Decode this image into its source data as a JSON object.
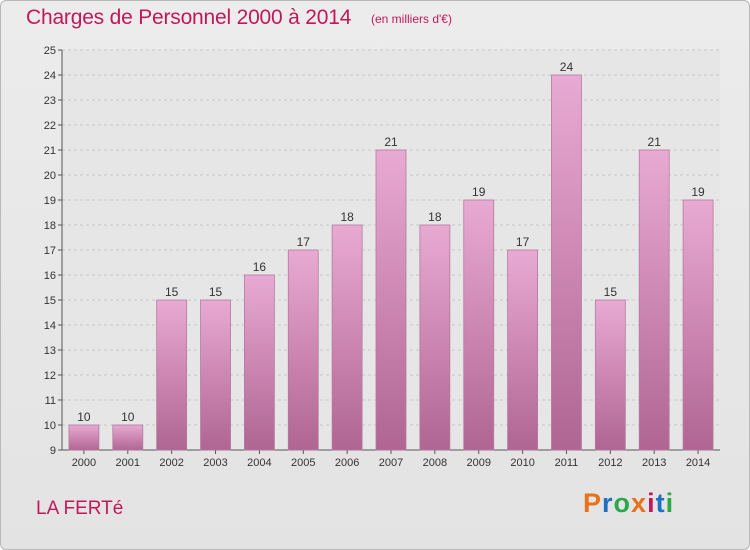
{
  "header": {
    "title": "Charges de Personnel 2000 à 2014",
    "subtitle": "(en milliers d'€)"
  },
  "footer": {
    "place": "LA FERTé",
    "logo_text": "Proxiti",
    "logo_colors": [
      "#e8721c",
      "#1f6fc2",
      "#2ba84a",
      "#e8721c",
      "#c2185b",
      "#1f6fc2",
      "#2ba84a"
    ]
  },
  "colors": {
    "title": "#c2185b",
    "bar_top": "#e8aad2",
    "bar_bottom": "#b06592"
  },
  "chart_data": {
    "type": "bar",
    "categories": [
      "2000",
      "2001",
      "2002",
      "2003",
      "2004",
      "2005",
      "2006",
      "2007",
      "2008",
      "2009",
      "2010",
      "2011",
      "2012",
      "2013",
      "2014"
    ],
    "values": [
      10,
      10,
      15,
      15,
      16,
      17,
      18,
      21,
      18,
      19,
      17,
      24,
      15,
      21,
      19
    ],
    "ylim": [
      9,
      25
    ],
    "yticks": [
      9,
      10,
      11,
      12,
      13,
      14,
      15,
      16,
      17,
      18,
      19,
      20,
      21,
      22,
      23,
      24,
      25
    ],
    "grid": true,
    "legend": "none"
  }
}
